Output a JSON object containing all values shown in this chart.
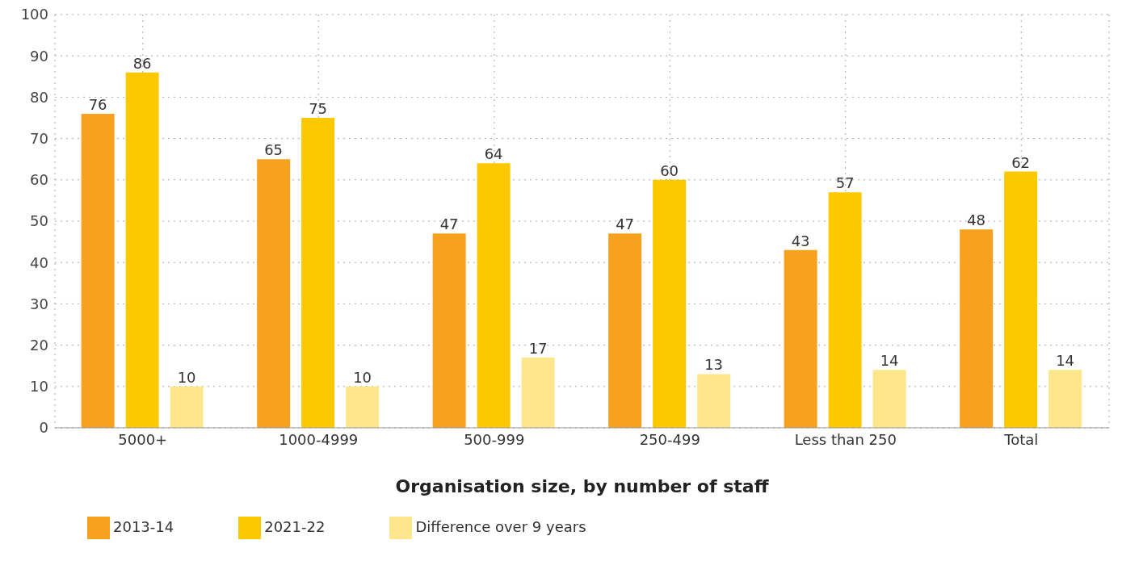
{
  "chart_data": {
    "type": "bar",
    "xlabel": "Organisation size, by number of staff",
    "categories": [
      "5000+",
      "1000-4999",
      "500-999",
      "250-499",
      "Less than 250",
      "Total"
    ],
    "series": [
      {
        "name": "2013-14",
        "color": "#f6a21e",
        "values": [
          76,
          65,
          47,
          47,
          43,
          48
        ]
      },
      {
        "name": "2021-22",
        "color": "#fcc800",
        "values": [
          86,
          75,
          64,
          60,
          57,
          62
        ]
      },
      {
        "name": "Difference over 9 years",
        "color": "#fde68c",
        "values": [
          10,
          10,
          17,
          13,
          14,
          14
        ]
      }
    ],
    "ylim": [
      0,
      100
    ],
    "yticks": [
      0,
      10,
      20,
      30,
      40,
      50,
      60,
      70,
      80,
      90,
      100
    ],
    "grid": true,
    "legend": "bottom left",
    "data_labels": true
  }
}
